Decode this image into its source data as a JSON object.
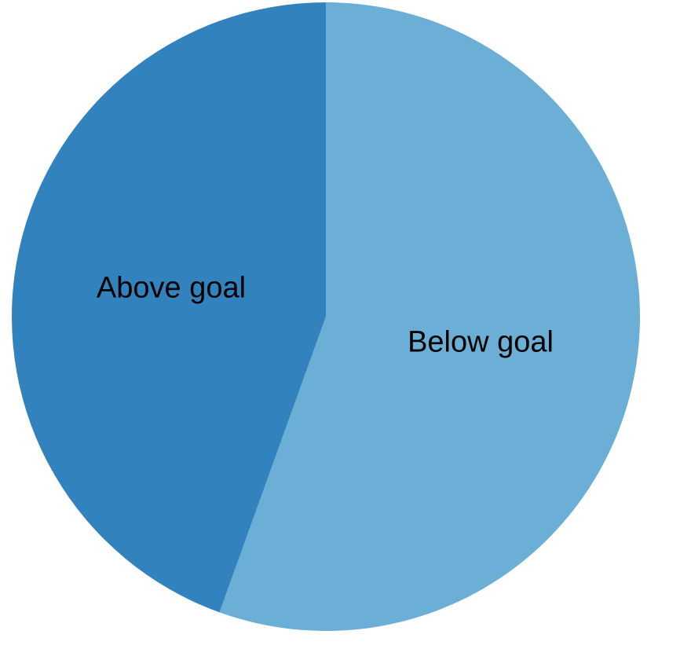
{
  "chart_data": {
    "type": "pie",
    "title": "",
    "slices": [
      {
        "label": "Below goal",
        "value": 55.5,
        "color": "#6baed6"
      },
      {
        "label": "Above goal",
        "value": 44.5,
        "color": "#3182bd"
      }
    ],
    "start_angle_deg": 0,
    "direction": "clockwise",
    "legend": "none",
    "labels_inside": true
  }
}
